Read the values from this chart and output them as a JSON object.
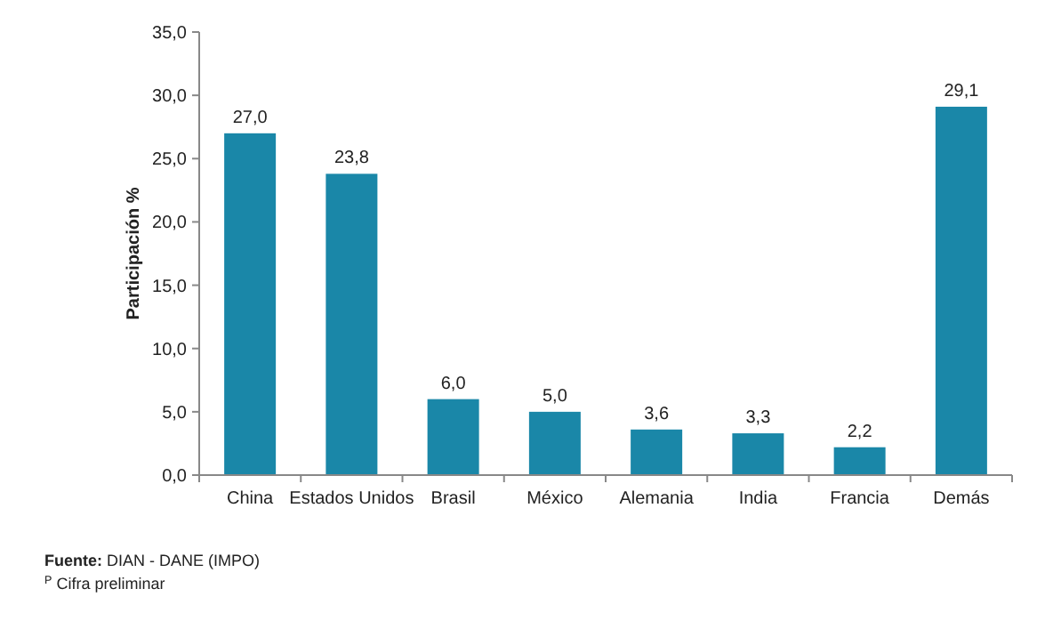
{
  "chart_data": {
    "type": "bar",
    "ylabel": "Participación %",
    "categories": [
      "China",
      "Estados Unidos",
      "Brasil",
      "México",
      "Alemania",
      "India",
      "Francia",
      "Demás"
    ],
    "values": [
      27.0,
      23.8,
      6.0,
      5.0,
      3.6,
      3.3,
      2.2,
      29.1
    ],
    "value_labels": [
      "27,0",
      "23,8",
      "6,0",
      "5,0",
      "3,6",
      "3,3",
      "2,2",
      "29,1"
    ],
    "color": "#1a87a8",
    "ylim": [
      0,
      35
    ],
    "yticks": [
      {
        "value": 0,
        "label": "0,0"
      },
      {
        "value": 5,
        "label": "5,0"
      },
      {
        "value": 10,
        "label": "10,0"
      },
      {
        "value": 15,
        "label": "15,0"
      },
      {
        "value": 20,
        "label": "20,0"
      },
      {
        "value": 25,
        "label": "25,0"
      },
      {
        "value": 30,
        "label": "30,0"
      },
      {
        "value": 35,
        "label": "35,0"
      }
    ],
    "grid": false,
    "annotations": [
      "Fuente: DIAN - DANE (IMPO)",
      "$^{P}$ Cifra preliminar"
    ]
  }
}
